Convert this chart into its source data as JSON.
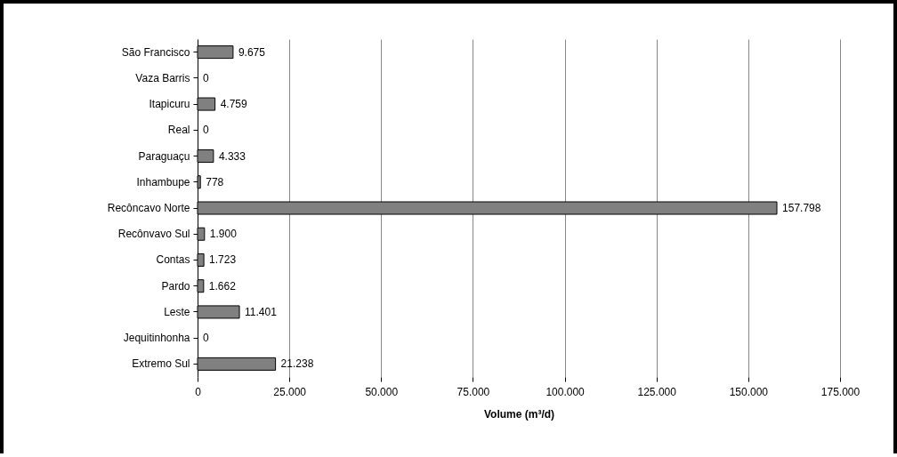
{
  "chart_data": {
    "type": "bar",
    "orientation": "horizontal",
    "xlabel": "Volume (m³/d)",
    "categories": [
      "São Francisco",
      "Vaza Barris",
      "Itapicuru",
      "Real",
      "Paraguaçu",
      "Inhambupe",
      "Recôncavo Norte",
      "Recônvavo Sul",
      "Contas",
      "Pardo",
      "Leste",
      "Jequitinhonha",
      "Extremo Sul"
    ],
    "values": [
      9675,
      0,
      4759,
      0,
      4333,
      778,
      157798,
      1900,
      1723,
      1662,
      11401,
      0,
      21238
    ],
    "value_labels": [
      "9.675",
      "0",
      "4.759",
      "0",
      "4.333",
      "778",
      "157.798",
      "1.900",
      "1.723",
      "1.662",
      "11.401",
      "0",
      "21.238"
    ],
    "color": "#808080",
    "xlim": [
      0,
      175000
    ],
    "xticks": [
      0,
      {
        "value": 25000,
        "label": "25.000"
      },
      {
        "value": 50000,
        "label": "50.000"
      },
      {
        "value": 75000,
        "label": "75.000"
      },
      {
        "value": 100000,
        "label": "100.000"
      },
      {
        "value": 125000,
        "label": "125.000"
      },
      {
        "value": 150000,
        "label": "150.000"
      },
      {
        "value": 175000,
        "label": "175.000"
      }
    ],
    "grid": "x"
  }
}
